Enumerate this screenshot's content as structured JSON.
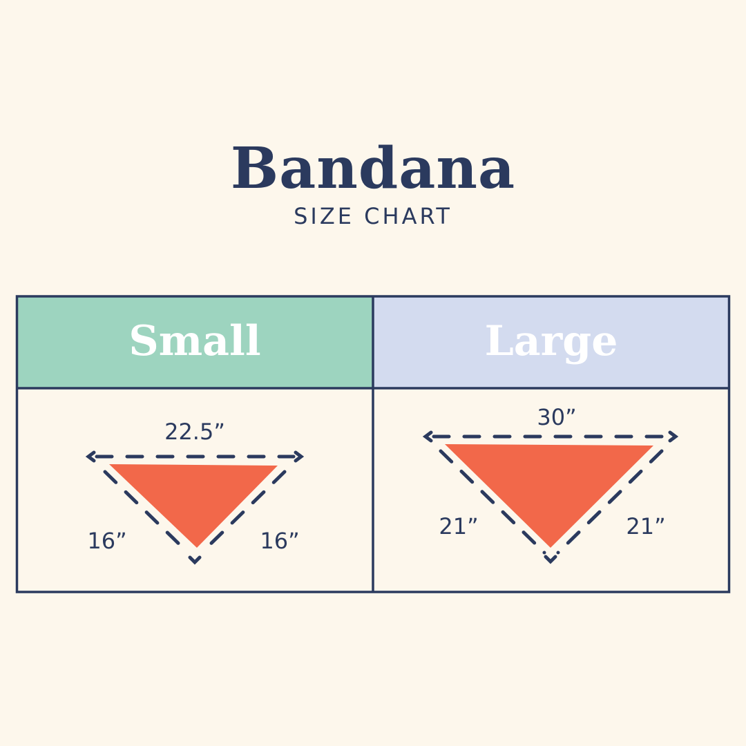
{
  "header": {
    "title": "Bandana",
    "subtitle": "SIZE CHART"
  },
  "sizes": [
    {
      "label": "Small",
      "header_color": "#9dd4bf",
      "top": "22.5”",
      "left_side": "16”",
      "right_side": "16”"
    },
    {
      "label": "Large",
      "header_color": "#d3dbef",
      "top": "30”",
      "left_side": "21”",
      "right_side": "21”"
    }
  ],
  "colors": {
    "background": "#fdf7ec",
    "navy": "#2b3a5e",
    "bandana": "#f2684a"
  }
}
